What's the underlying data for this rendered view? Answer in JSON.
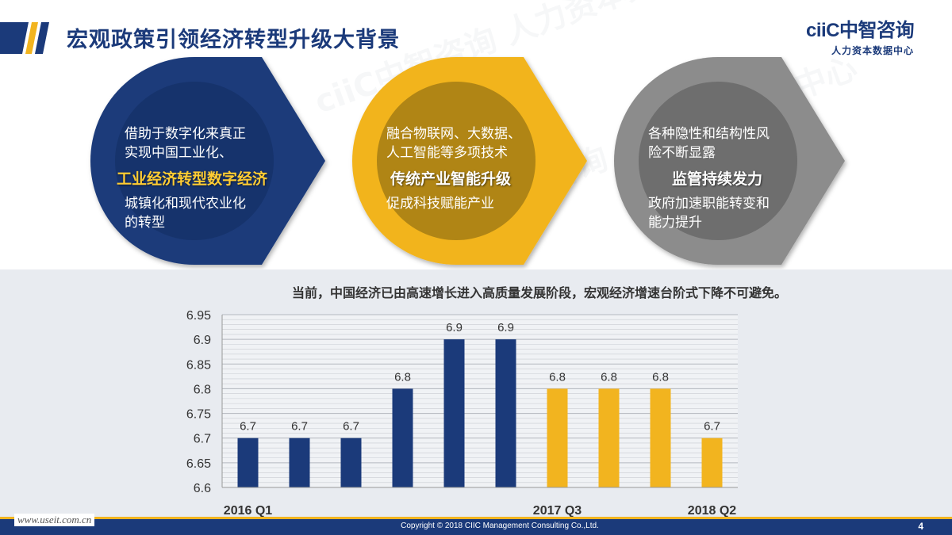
{
  "header": {
    "title": "宏观政策引领经济转型升级大背景",
    "logo": "ciiC中智咨询",
    "logo_sub": "人力资本数据中心"
  },
  "watermark": "ciiC中智咨询 人力资本数据中心",
  "colors": {
    "navy": "#1b3a7a",
    "gold": "#f2b41f",
    "gray": "#8c8c8c",
    "chart_bg": "#e8ebf0"
  },
  "circles": [
    {
      "color": "navy",
      "top_lines": [
        "借助于数字化来真正",
        "实现中国工业化、"
      ],
      "highlight": "工业经济转型数字经济",
      "bottom_lines": [
        "城镇化和现代农业化",
        "的转型"
      ]
    },
    {
      "color": "gold",
      "top_lines": [
        "融合物联网、大数据、",
        "人工智能等多项技术"
      ],
      "highlight": "传统产业智能升级",
      "bottom_lines": [
        "促成科技赋能产业"
      ]
    },
    {
      "color": "gray",
      "top_lines": [
        "各种隐性和结构性风",
        "险不断显露"
      ],
      "highlight": "监管持续发力",
      "bottom_lines": [
        "政府加速职能转变和",
        "能力提升"
      ]
    }
  ],
  "chart_caption": "当前，中国经济已由高速增长进入高质量发展阶段，宏观经济增速台阶式下降不可避免。",
  "chart_data": {
    "type": "bar",
    "title": "",
    "xlabel": "",
    "ylabel": "",
    "ylim": [
      6.6,
      6.95
    ],
    "yticks": [
      "6.6",
      "6.65",
      "6.7",
      "6.75",
      "6.8",
      "6.85",
      "6.9",
      "6.95"
    ],
    "categories": [
      "2016 Q1",
      "",
      "",
      "",
      "",
      "",
      "2017 Q3",
      "",
      "",
      "2018 Q2"
    ],
    "values": [
      6.7,
      6.7,
      6.7,
      6.8,
      6.9,
      6.9,
      6.8,
      6.8,
      6.8,
      6.7
    ],
    "data_labels": [
      "6.7",
      "6.7",
      "6.7",
      "6.8",
      "6.9",
      "6.9",
      "6.8",
      "6.8",
      "6.8",
      "6.7"
    ],
    "bar_colors": [
      "#1b3a7a",
      "#1b3a7a",
      "#1b3a7a",
      "#1b3a7a",
      "#1b3a7a",
      "#1b3a7a",
      "#f2b41f",
      "#f2b41f",
      "#f2b41f",
      "#f2b41f"
    ],
    "grid": "horizontal",
    "legend": "none"
  },
  "footer": {
    "url": "www.useit.com.cn",
    "copyright": "Copyright © 2018 CIIC Management Consulting Co.,Ltd.",
    "page_number": "4"
  }
}
